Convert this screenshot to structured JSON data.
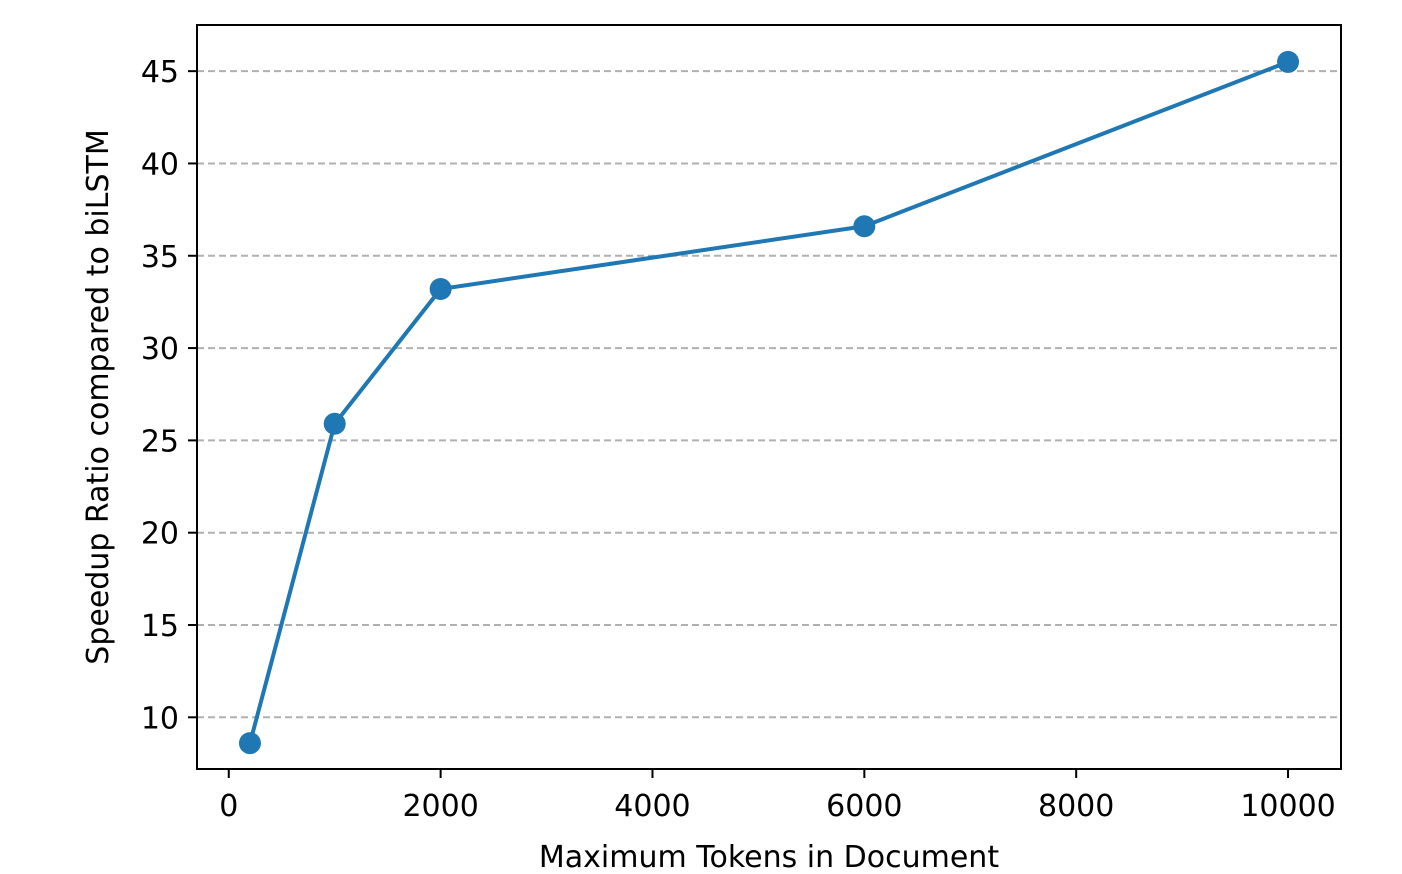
{
  "chart_data": {
    "type": "line",
    "title": "",
    "xlabel": "Maximum Tokens in Document",
    "ylabel": "Speedup Ratio compared to biLSTM",
    "xlim": [
      -300,
      10500
    ],
    "ylim": [
      7.2,
      47.5
    ],
    "x_ticks": [
      0,
      2000,
      4000,
      6000,
      8000,
      10000
    ],
    "x_tick_labels": [
      "0",
      "2000",
      "4000",
      "6000",
      "8000",
      "10000"
    ],
    "y_ticks": [
      10,
      15,
      20,
      25,
      30,
      35,
      40,
      45
    ],
    "y_tick_labels": [
      "10",
      "15",
      "20",
      "25",
      "30",
      "35",
      "40",
      "45"
    ],
    "grid": "horizontal dashed",
    "series": [
      {
        "color": "#1f77b4",
        "marker": "circle",
        "x": [
          200,
          1000,
          2000,
          6000,
          10000
        ],
        "y": [
          8.6,
          25.9,
          33.2,
          36.6,
          45.5
        ]
      }
    ]
  }
}
